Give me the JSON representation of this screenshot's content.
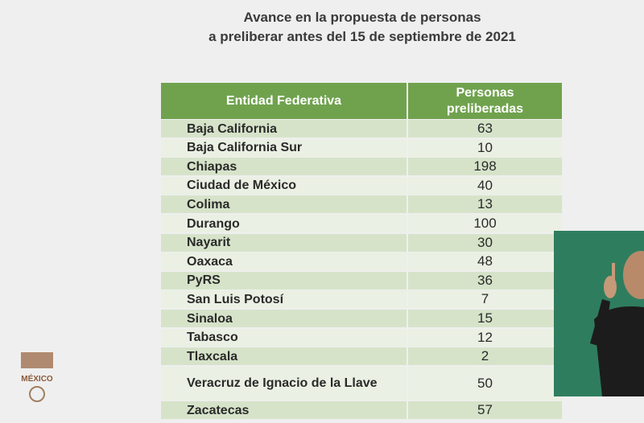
{
  "header": {
    "title_lines": [
      "Avance en la propuesta de personas",
      "a preliberar antes del 15 de septiembre de 2021"
    ]
  },
  "table": {
    "columns": [
      "Entidad Federativa",
      "Personas preliberadas"
    ],
    "rows": [
      [
        "Baja California",
        63
      ],
      [
        "Baja California Sur",
        10
      ],
      [
        "Chiapas",
        198
      ],
      [
        "Ciudad de México",
        40
      ],
      [
        "Colima",
        13
      ],
      [
        "Durango",
        100
      ],
      [
        "Nayarit",
        30
      ],
      [
        "Oaxaca",
        48
      ],
      [
        "PyRS",
        36
      ],
      [
        "San Luis Potosí",
        7
      ],
      [
        "Sinaloa",
        15
      ],
      [
        "Tabasco",
        12
      ],
      [
        "Tlaxcala",
        2
      ],
      [
        "Veracruz de Ignacio de la Llave",
        50
      ],
      [
        "Zacatecas",
        57
      ]
    ]
  },
  "logo": {
    "text": "MÉXICO"
  }
}
